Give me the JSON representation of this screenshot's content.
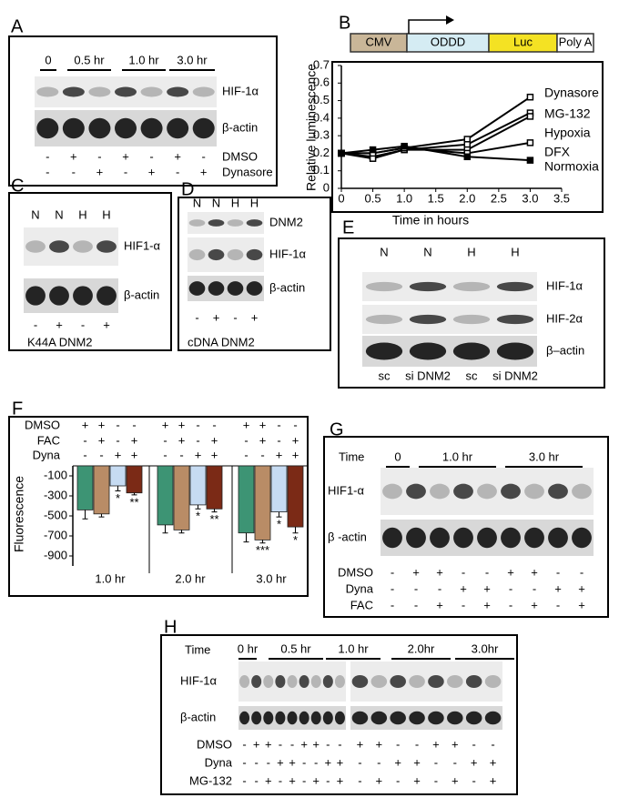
{
  "panels": {
    "A": {
      "label": "A",
      "headers": [
        "0",
        "0.5 hr",
        "1.0 hr",
        "3.0 hr"
      ],
      "blots": [
        "HIF-1α",
        "β-actin"
      ],
      "conditions": [
        {
          "name": "DMSO",
          "signs": [
            "-",
            "+",
            "-",
            "+",
            "-",
            "+",
            "-"
          ]
        },
        {
          "name": "Dynasore",
          "signs": [
            "-",
            "-",
            "+",
            "-",
            "+",
            "-",
            "+"
          ]
        }
      ]
    },
    "B": {
      "label": "B",
      "construct": [
        "CMV",
        "ODDD",
        "Luc",
        "Poly A"
      ]
    },
    "C": {
      "label": "C",
      "headers": [
        "N",
        "N",
        "H",
        "H"
      ],
      "blots": [
        "HIF1-α",
        "β-actin"
      ],
      "conditions": [
        {
          "signs": [
            "-",
            "+",
            "-",
            "+"
          ]
        }
      ],
      "footer": [
        "K44A DNM2"
      ]
    },
    "D": {
      "label": "D",
      "headers": [
        "N",
        "N",
        "H",
        "H"
      ],
      "blots": [
        "DNM2",
        "HIF-1α",
        "β-actin"
      ],
      "conditions": [
        {
          "signs": [
            "-",
            "+",
            "-",
            "+"
          ]
        }
      ],
      "footer": [
        "cDNA DNM2"
      ]
    },
    "E": {
      "label": "E",
      "headers": [
        "N",
        "N",
        "H",
        "H"
      ],
      "blots": [
        "HIF-1α",
        "HIF-2α",
        "β–actin"
      ],
      "footer": [
        "sc",
        "si DNM2",
        "sc",
        "si DNM2"
      ]
    },
    "F": {
      "label": "F"
    },
    "G": {
      "label": "G",
      "time_label": "Time",
      "headers": [
        "0",
        "1.0 hr",
        "3.0 hr"
      ],
      "blots": [
        "HIF1-α",
        "β -actin"
      ],
      "conditions": [
        {
          "name": "DMSO",
          "signs": [
            "-",
            "+",
            "+",
            "-",
            "-",
            "+",
            "+",
            "-",
            "-"
          ]
        },
        {
          "name": "Dyna",
          "signs": [
            "-",
            "-",
            "-",
            "+",
            "+",
            "-",
            "-",
            "+",
            "+"
          ]
        },
        {
          "name": "FAC",
          "signs": [
            "-",
            "-",
            "+",
            "-",
            "+",
            "-",
            "+",
            "-",
            "+"
          ]
        }
      ]
    },
    "H": {
      "label": "H",
      "time_label": "Time",
      "headers": [
        "0 hr",
        "0.5 hr",
        "1.0 hr",
        "2.0hr",
        "3.0hr"
      ],
      "blots": [
        "HIF-1α",
        "β-actin"
      ],
      "conditions": [
        {
          "name": "DMSO",
          "signs": [
            "-",
            "+",
            "+",
            "-",
            "-",
            "+",
            "+",
            "-",
            "-",
            "+",
            "+",
            "-",
            "-",
            "+",
            "+",
            "-",
            "-"
          ]
        },
        {
          "name": "Dyna",
          "signs": [
            "-",
            "-",
            "-",
            "+",
            "+",
            "-",
            "-",
            "+",
            "+",
            "-",
            "-",
            "+",
            "+",
            "-",
            "-",
            "+",
            "+"
          ]
        },
        {
          "name": "MG-132",
          "signs": [
            "-",
            "-",
            "+",
            "-",
            "+",
            "-",
            "+",
            "-",
            "+",
            "-",
            "+",
            "-",
            "+",
            "-",
            "+",
            "-",
            "+"
          ]
        }
      ]
    }
  },
  "chart_data": [
    {
      "type": "line",
      "x_label": "Time in hours",
      "y_label": "Relative luminescence",
      "x": [
        0,
        0.5,
        1,
        2,
        3
      ],
      "series": [
        {
          "name": "Dynasore",
          "color": "#000000",
          "values": [
            0.2,
            0.2,
            0.23,
            0.28,
            0.52
          ]
        },
        {
          "name": "MG-132",
          "color": "#000000",
          "values": [
            0.2,
            0.18,
            0.22,
            0.25,
            0.43
          ]
        },
        {
          "name": "Hypoxia",
          "color": "#000000",
          "values": [
            0.2,
            0.17,
            0.22,
            0.22,
            0.41
          ]
        },
        {
          "name": "DFX",
          "color": "#000000",
          "values": [
            0.2,
            0.2,
            0.23,
            0.2,
            0.26
          ]
        },
        {
          "name": "Normoxia",
          "color": "#000000",
          "values": [
            0.2,
            0.22,
            0.24,
            0.18,
            0.16
          ]
        }
      ],
      "xlim": [
        0,
        3.5
      ],
      "xticks": [
        0,
        0.5,
        {
          "value": 1,
          "label": "1.0"
        },
        1.5,
        {
          "value": 2,
          "label": "2.0"
        },
        2.5,
        {
          "value": 3,
          "label": "3.0"
        },
        3.5
      ],
      "ylim": [
        0,
        0.7
      ],
      "yticks": [
        0,
        0.1,
        0.2,
        0.3,
        0.4,
        0.5,
        0.6,
        0.7
      ]
    },
    {
      "type": "bar",
      "y_label": "Fluorescence",
      "categories": [
        "1.0 hr",
        "2.0 hr",
        "3.0 hr"
      ],
      "conditions": [
        {
          "name": "DMSO",
          "signs": [
            "+",
            "+",
            "-",
            "-",
            "+",
            "+",
            "-",
            "-",
            "+",
            "+",
            "-",
            "-"
          ]
        },
        {
          "name": "FAC",
          "signs": [
            "-",
            "+",
            "-",
            "+",
            "-",
            "+",
            "-",
            "+",
            "-",
            "+",
            "-",
            "+"
          ]
        },
        {
          "name": "Dyna",
          "signs": [
            "-",
            "-",
            "+",
            "+",
            "-",
            "-",
            "+",
            "+",
            "-",
            "-",
            "+",
            "+"
          ]
        }
      ],
      "series": [
        {
          "color": "#3d9474",
          "values": [
            -440,
            -590,
            -670
          ],
          "errors": [
            90,
            80,
            90
          ],
          "significance": [
            null,
            null,
            null
          ]
        },
        {
          "color": "#b98c66",
          "values": [
            -480,
            -640,
            -740
          ],
          "errors": [
            30,
            30,
            30
          ],
          "significance": [
            null,
            null,
            "***"
          ]
        },
        {
          "color": "#c6dbf2",
          "values": [
            -200,
            -390,
            -460
          ],
          "errors": [
            50,
            40,
            50
          ],
          "significance": [
            "*",
            "*",
            "*"
          ]
        },
        {
          "color": "#7b2a16",
          "values": [
            -270,
            -430,
            -610
          ],
          "errors": [
            20,
            30,
            60
          ],
          "significance": [
            "**",
            "**",
            "*"
          ]
        }
      ],
      "ylim": [
        -1000,
        0
      ],
      "yticks": [
        -100,
        -300,
        -500,
        -700,
        -900
      ]
    }
  ]
}
